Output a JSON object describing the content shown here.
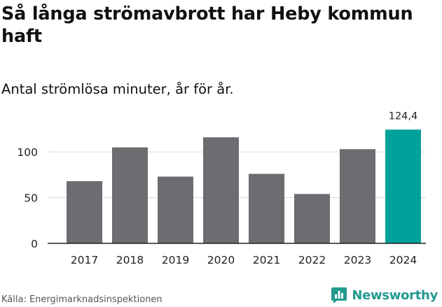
{
  "title": "Så långa strömavbrott har Heby kommun haft",
  "subtitle": "Antal strömlösa minuter, år för år.",
  "source": "Källa: Energimarknadsinspektionen",
  "brand": {
    "name": "Newsworthy",
    "icon": "newsworthy-logo-icon",
    "color": "#239990"
  },
  "colors": {
    "bar": "#6d6c71",
    "highlight": "#00a19a",
    "grid": "#d9d9d9",
    "axis": "#222222"
  },
  "chart_data": {
    "type": "bar",
    "title": "Så långa strömavbrott har Heby kommun haft",
    "subtitle": "Antal strömlösa minuter, år för år.",
    "categories": [
      "2017",
      "2018",
      "2019",
      "2020",
      "2021",
      "2022",
      "2023",
      "2024"
    ],
    "values": [
      68,
      105,
      73,
      116,
      76,
      54,
      103,
      124.4
    ],
    "highlight_index": 7,
    "data_labels": [
      {
        "index": 7,
        "text": "124,4"
      }
    ],
    "yticks": [
      0,
      50,
      100
    ],
    "ylim": [
      0,
      130
    ],
    "xlabel": "",
    "ylabel": "",
    "grid": true
  }
}
